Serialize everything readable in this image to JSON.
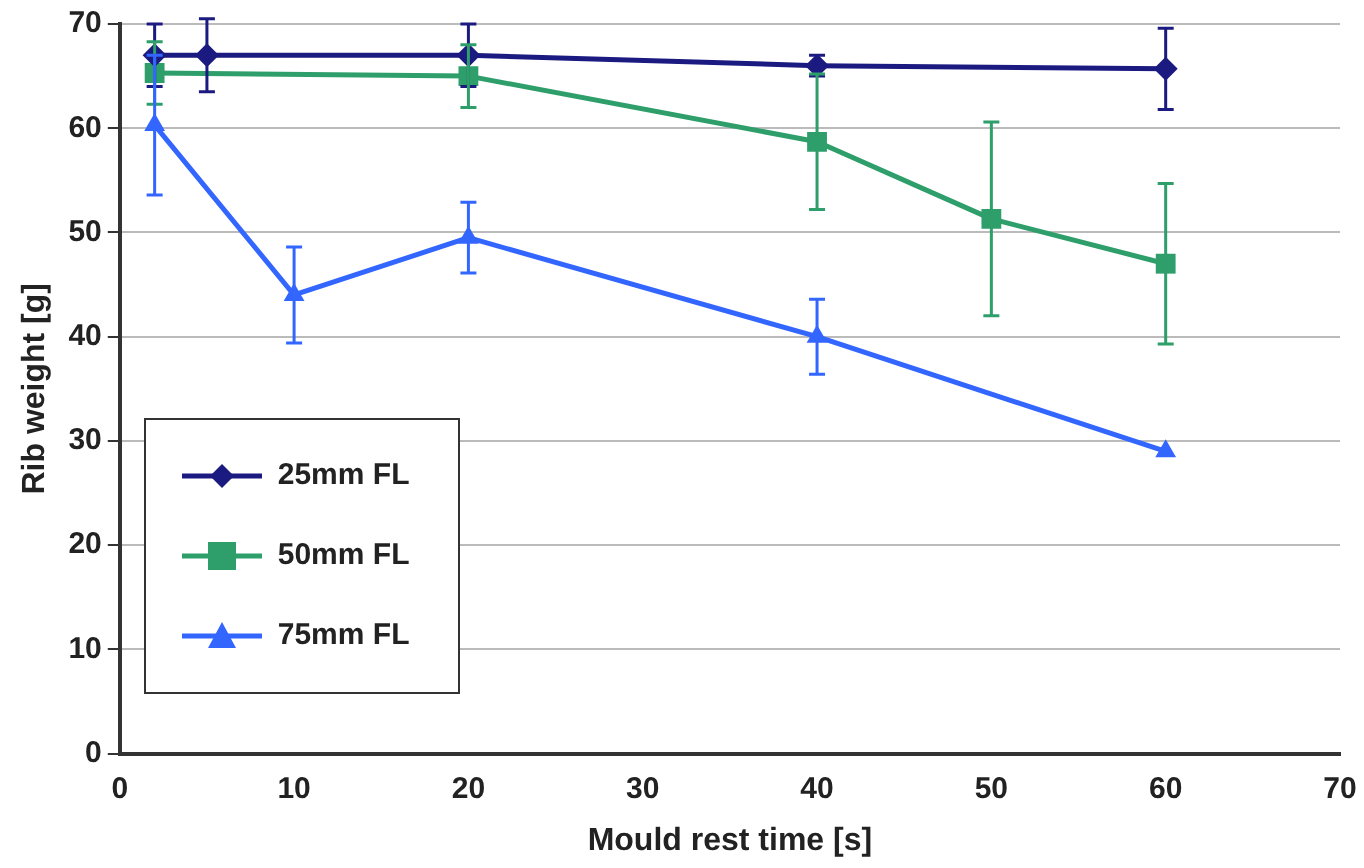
{
  "chart_data": {
    "type": "line",
    "xlabel": "Mould rest time [s]",
    "ylabel": "Rib weight [g]",
    "xlim": [
      0,
      70
    ],
    "xticks": [
      0,
      10,
      20,
      30,
      40,
      50,
      60,
      70
    ],
    "ylim": [
      0,
      70
    ],
    "yticks": [
      0,
      10,
      20,
      30,
      40,
      50,
      60,
      70
    ],
    "grid": "y",
    "legend": "left",
    "line_style": "solid",
    "series": [
      {
        "name": "25mm FL",
        "color": "#1a1a80",
        "marker": "diamond",
        "x": [
          2,
          5,
          20,
          40,
          60
        ],
        "values": [
          67,
          67,
          67,
          66,
          65.7
        ],
        "errors": [
          3,
          3.5,
          3,
          1,
          3.9
        ]
      },
      {
        "name": "50mm FL",
        "color": "#2e9e6a",
        "marker": "square",
        "x": [
          2,
          20,
          40,
          50,
          60
        ],
        "values": [
          65.3,
          65,
          58.7,
          51.3,
          47
        ],
        "errors": [
          3,
          3,
          6.5,
          9.3,
          7.7
        ]
      },
      {
        "name": "75mm FL",
        "color": "#3366ff",
        "marker": "triangle",
        "x": [
          2,
          10,
          20,
          40,
          60
        ],
        "values": [
          60.3,
          44,
          49.5,
          40,
          29
        ],
        "errors": [
          6.7,
          4.6,
          3.4,
          3.6,
          null
        ]
      }
    ]
  }
}
